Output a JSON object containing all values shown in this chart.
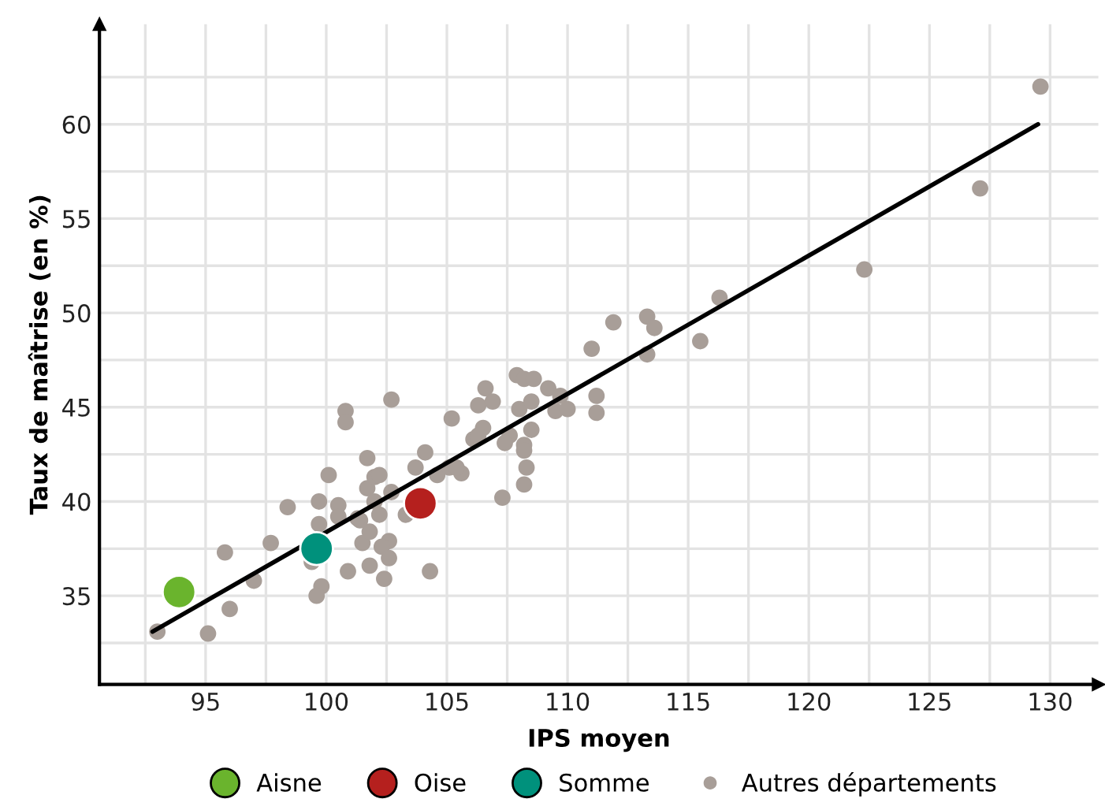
{
  "chart_data": {
    "type": "scatter",
    "xlabel": "IPS moyen",
    "ylabel": "Taux de maîtrise (en %)",
    "xlim": [
      90.6,
      132
    ],
    "ylim": [
      30.3,
      65.3
    ],
    "xticks": [
      {
        "value": 92.5,
        "label": null
      },
      95,
      {
        "value": 97.5,
        "label": null
      },
      100,
      {
        "value": 102.5,
        "label": null
      },
      105,
      {
        "value": 107.5,
        "label": null
      },
      110,
      {
        "value": 112.5,
        "label": null
      },
      115,
      {
        "value": 117.5,
        "label": null
      },
      120,
      {
        "value": 122.5,
        "label": null
      },
      125,
      {
        "value": 127.5,
        "label": null
      },
      130
    ],
    "yticks": [
      {
        "value": 32.5,
        "label": null
      },
      35,
      {
        "value": 37.5,
        "label": null
      },
      40,
      {
        "value": 42.5,
        "label": null
      },
      45,
      {
        "value": 47.5,
        "label": null
      },
      50,
      {
        "value": 52.5,
        "label": null
      },
      55,
      {
        "value": 57.5,
        "label": null
      },
      60,
      {
        "value": 62.5,
        "label": null
      }
    ],
    "grid": true,
    "legend": "bottom",
    "marker": "circle",
    "series": [
      {
        "name": "Aisne",
        "color": "#6ab42d",
        "x": [
          93.9
        ],
        "values": [
          35.2
        ]
      },
      {
        "name": "Oise",
        "color": "#b5201e",
        "x": [
          103.9
        ],
        "values": [
          39.9
        ]
      },
      {
        "name": "Somme",
        "color": "#00917c",
        "x": [
          99.6
        ],
        "values": [
          37.5
        ]
      },
      {
        "name": "Autres départements",
        "color": "#a89e98",
        "x": [
          93.0,
          95.1,
          96.0,
          95.8,
          97.0,
          97.7,
          98.4,
          99.7,
          99.7,
          100.5,
          100.5,
          100.8,
          100.8,
          101.7,
          100.1,
          99.4,
          99.8,
          99.6,
          100.9,
          101.8,
          101.5,
          101.8,
          101.4,
          101.7,
          102.0,
          102.7,
          102.2,
          102.0,
          101.3,
          102.2,
          102.6,
          102.3,
          102.6,
          102.4,
          102.7,
          103.7,
          104.1,
          103.3,
          104.6,
          105.1,
          105.6,
          105.4,
          104.3,
          105.2,
          106.6,
          106.3,
          106.9,
          106.1,
          106.5,
          106.3,
          107.3,
          107.9,
          108.2,
          108.6,
          109.2,
          108.0,
          108.5,
          109.7,
          109.5,
          110.0,
          108.5,
          107.6,
          107.4,
          108.2,
          108.2,
          108.3,
          108.2,
          111.0,
          111.2,
          111.2,
          111.9,
          113.3,
          113.6,
          113.3,
          115.5,
          116.3,
          122.3,
          127.1,
          129.6
        ],
        "values": [
          33.1,
          33.0,
          34.3,
          37.3,
          35.8,
          37.8,
          39.7,
          40.0,
          38.8,
          39.8,
          39.2,
          44.8,
          44.2,
          42.3,
          41.4,
          36.8,
          35.5,
          35.0,
          36.3,
          36.6,
          37.8,
          38.4,
          39.0,
          40.7,
          41.3,
          45.4,
          41.4,
          40.0,
          39.1,
          39.3,
          37.9,
          37.6,
          37.0,
          35.9,
          40.5,
          41.8,
          42.6,
          39.3,
          41.4,
          41.8,
          41.5,
          41.8,
          36.3,
          44.4,
          46.0,
          45.1,
          45.3,
          43.3,
          43.9,
          43.5,
          40.2,
          46.7,
          46.5,
          46.5,
          46.0,
          44.9,
          45.3,
          45.6,
          44.8,
          44.9,
          43.8,
          43.5,
          43.1,
          43.0,
          42.7,
          41.8,
          40.9,
          48.1,
          44.7,
          45.6,
          49.5,
          49.8,
          49.2,
          47.8,
          48.5,
          50.8,
          52.3,
          56.6,
          62.0
        ]
      },
      {
        "type": "line",
        "marker": "none",
        "color": "#000000",
        "x": [
          92.8,
          129.5
        ],
        "values": [
          33.1,
          60.0
        ]
      }
    ]
  }
}
